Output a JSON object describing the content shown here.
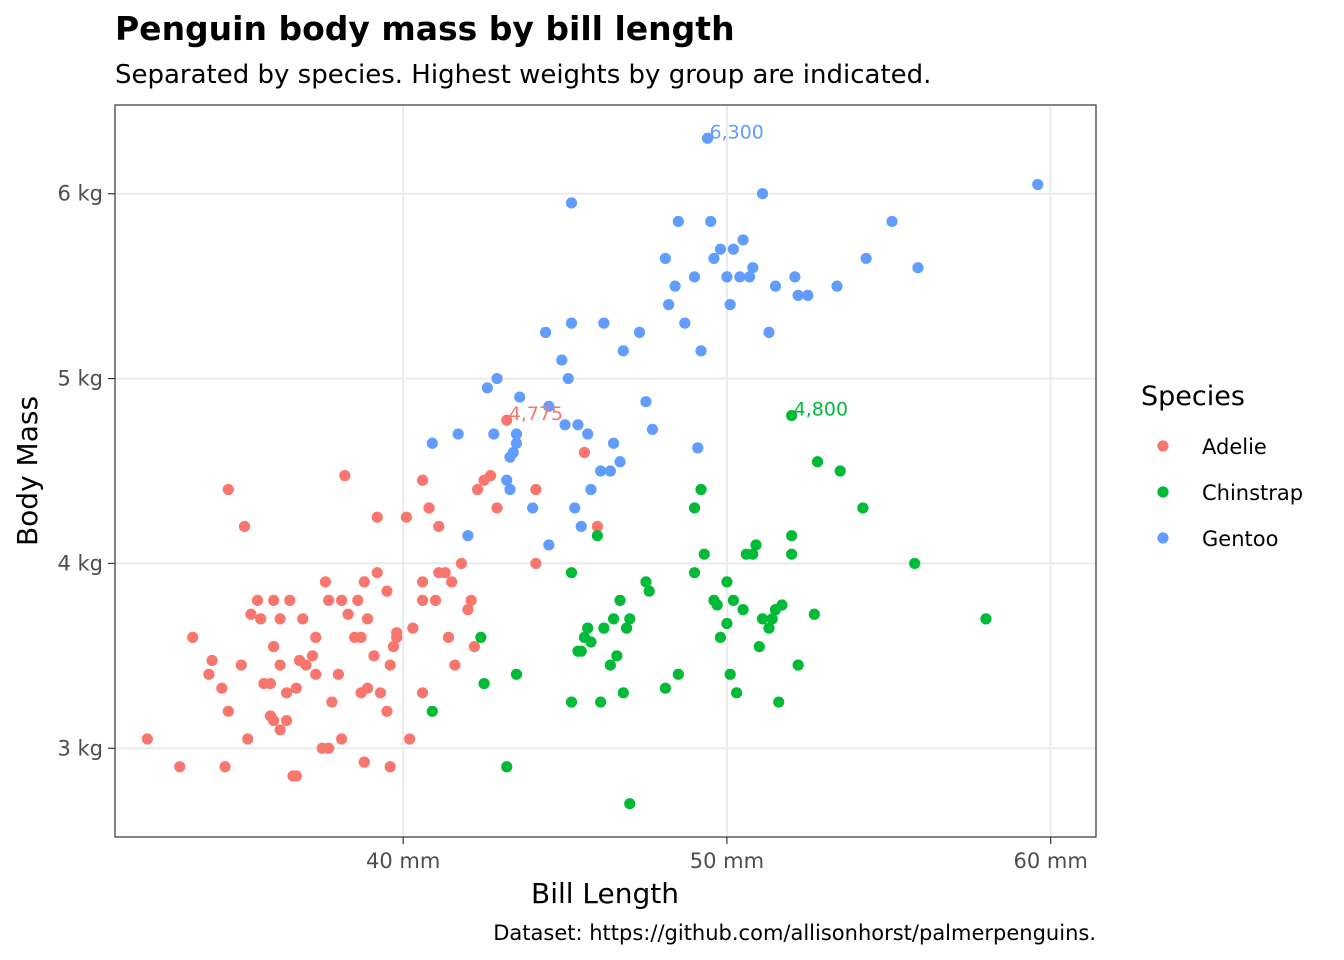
{
  "chart_data": {
    "type": "scatter",
    "title": "Penguin body mass by bill length",
    "subtitle": "Separated by species. Highest weights by group are indicated.",
    "xlabel": "Bill Length",
    "ylabel": "Body Mass",
    "caption": "Dataset: https://github.com/allisonhorst/palmerpenguins.",
    "xlim": [
      31.1,
      61.4
    ],
    "ylim": [
      2.52,
      6.48
    ],
    "x_ticks": [
      {
        "value": 40,
        "label": "40 mm"
      },
      {
        "value": 50,
        "label": "50 mm"
      },
      {
        "value": 60,
        "label": "60 mm"
      }
    ],
    "y_ticks": [
      {
        "value": 3,
        "label": "3 kg"
      },
      {
        "value": 4,
        "label": "4 kg"
      },
      {
        "value": 5,
        "label": "5 kg"
      },
      {
        "value": 6,
        "label": "6 kg"
      }
    ],
    "grid": true,
    "legend": {
      "title": "Species",
      "position": "right"
    },
    "series": [
      {
        "name": "Adelie",
        "color": "#F8766D",
        "points": [
          [
            32.1,
            3.05
          ],
          [
            33.1,
            2.9
          ],
          [
            33.5,
            3.6
          ],
          [
            34.0,
            3.4
          ],
          [
            34.1,
            3.475
          ],
          [
            34.4,
            3.325
          ],
          [
            34.5,
            2.9
          ],
          [
            34.6,
            3.2
          ],
          [
            34.6,
            4.4
          ],
          [
            35.0,
            3.45
          ],
          [
            35.1,
            4.2
          ],
          [
            35.2,
            3.05
          ],
          [
            35.3,
            3.725
          ],
          [
            35.5,
            3.8
          ],
          [
            35.6,
            3.7
          ],
          [
            35.7,
            3.35
          ],
          [
            35.9,
            3.175
          ],
          [
            35.9,
            3.35
          ],
          [
            36.0,
            3.15
          ],
          [
            36.0,
            3.55
          ],
          [
            36.0,
            3.8
          ],
          [
            36.2,
            3.1
          ],
          [
            36.2,
            3.45
          ],
          [
            36.2,
            3.7
          ],
          [
            36.4,
            3.3
          ],
          [
            36.4,
            3.15
          ],
          [
            36.5,
            3.8
          ],
          [
            36.6,
            2.85
          ],
          [
            36.7,
            3.325
          ],
          [
            36.7,
            2.85
          ],
          [
            36.8,
            3.475
          ],
          [
            36.9,
            3.7
          ],
          [
            37.0,
            3.45
          ],
          [
            37.2,
            3.5
          ],
          [
            37.3,
            3.4
          ],
          [
            37.3,
            3.6
          ],
          [
            37.5,
            3.0
          ],
          [
            37.6,
            3.9
          ],
          [
            37.7,
            3.8
          ],
          [
            37.7,
            3.0
          ],
          [
            37.8,
            3.25
          ],
          [
            38.0,
            3.4
          ],
          [
            38.1,
            3.8
          ],
          [
            38.1,
            3.05
          ],
          [
            38.2,
            4.475
          ],
          [
            38.3,
            3.725
          ],
          [
            38.5,
            3.6
          ],
          [
            38.6,
            3.8
          ],
          [
            38.7,
            3.3
          ],
          [
            38.7,
            3.6
          ],
          [
            38.8,
            2.925
          ],
          [
            38.8,
            3.9
          ],
          [
            38.9,
            3.7
          ],
          [
            38.9,
            3.325
          ],
          [
            39.1,
            3.5
          ],
          [
            39.2,
            3.95
          ],
          [
            39.2,
            4.25
          ],
          [
            39.3,
            3.3
          ],
          [
            39.5,
            3.85
          ],
          [
            39.5,
            3.2
          ],
          [
            39.6,
            2.9
          ],
          [
            39.6,
            3.45
          ],
          [
            39.7,
            3.55
          ],
          [
            39.8,
            3.625
          ],
          [
            39.8,
            3.6
          ],
          [
            40.1,
            4.25
          ],
          [
            40.2,
            3.05
          ],
          [
            40.3,
            3.65
          ],
          [
            40.6,
            3.8
          ],
          [
            40.6,
            3.3
          ],
          [
            40.6,
            3.9
          ],
          [
            40.6,
            4.45
          ],
          [
            40.8,
            4.3
          ],
          [
            41.0,
            3.8
          ],
          [
            41.1,
            3.95
          ],
          [
            41.1,
            4.2
          ],
          [
            41.3,
            3.95
          ],
          [
            41.4,
            3.6
          ],
          [
            41.5,
            3.9
          ],
          [
            41.6,
            3.45
          ],
          [
            41.8,
            4.0
          ],
          [
            42.0,
            3.75
          ],
          [
            42.1,
            3.8
          ],
          [
            42.2,
            3.55
          ],
          [
            42.3,
            4.4
          ],
          [
            42.5,
            4.45
          ],
          [
            42.7,
            4.475
          ],
          [
            42.9,
            4.3
          ],
          [
            43.2,
            4.775
          ],
          [
            44.1,
            4.0
          ],
          [
            44.1,
            4.4
          ],
          [
            45.6,
            4.6
          ],
          [
            46.0,
            4.2
          ]
        ],
        "max_label": "4,775",
        "max_point": [
          43.2,
          4.775
        ]
      },
      {
        "name": "Chinstrap",
        "color": "#00BA38",
        "points": [
          [
            40.9,
            3.2
          ],
          [
            42.4,
            3.6
          ],
          [
            42.5,
            3.35
          ],
          [
            43.2,
            2.9
          ],
          [
            43.5,
            3.4
          ],
          [
            45.2,
            3.25
          ],
          [
            45.2,
            3.95
          ],
          [
            45.4,
            3.525
          ],
          [
            45.5,
            3.525
          ],
          [
            45.6,
            3.6
          ],
          [
            45.7,
            3.65
          ],
          [
            45.8,
            3.575
          ],
          [
            46.0,
            4.15
          ],
          [
            46.1,
            3.25
          ],
          [
            46.2,
            3.65
          ],
          [
            46.4,
            3.45
          ],
          [
            46.5,
            3.7
          ],
          [
            46.6,
            3.5
          ],
          [
            46.7,
            3.8
          ],
          [
            46.8,
            3.3
          ],
          [
            46.9,
            3.65
          ],
          [
            47.0,
            3.7
          ],
          [
            47.0,
            2.7
          ],
          [
            47.5,
            3.9
          ],
          [
            47.6,
            3.85
          ],
          [
            48.1,
            3.325
          ],
          [
            48.5,
            3.4
          ],
          [
            49.0,
            3.95
          ],
          [
            49.0,
            4.3
          ],
          [
            49.2,
            4.4
          ],
          [
            49.3,
            4.05
          ],
          [
            49.6,
            3.8
          ],
          [
            49.7,
            3.775
          ],
          [
            49.8,
            3.6
          ],
          [
            50.0,
            3.675
          ],
          [
            50.0,
            3.9
          ],
          [
            50.1,
            3.4
          ],
          [
            50.2,
            3.8
          ],
          [
            50.3,
            3.3
          ],
          [
            50.5,
            3.75
          ],
          [
            50.6,
            4.05
          ],
          [
            50.8,
            4.05
          ],
          [
            50.9,
            4.1
          ],
          [
            51.0,
            3.55
          ],
          [
            51.1,
            3.7
          ],
          [
            51.3,
            3.65
          ],
          [
            51.4,
            3.7
          ],
          [
            51.5,
            3.75
          ],
          [
            51.6,
            3.25
          ],
          [
            51.7,
            3.775
          ],
          [
            52.0,
            4.15
          ],
          [
            52.0,
            4.05
          ],
          [
            52.2,
            3.45
          ],
          [
            52.7,
            3.725
          ],
          [
            52.8,
            4.55
          ],
          [
            53.5,
            4.5
          ],
          [
            54.2,
            4.3
          ],
          [
            55.8,
            4.0
          ],
          [
            58.0,
            3.7
          ],
          [
            52.0,
            4.8
          ]
        ],
        "max_label": "4,800",
        "max_point": [
          52.0,
          4.8
        ]
      },
      {
        "name": "Gentoo",
        "color": "#619CFF",
        "points": [
          [
            40.9,
            4.65
          ],
          [
            41.7,
            4.7
          ],
          [
            42.0,
            4.15
          ],
          [
            42.6,
            4.95
          ],
          [
            42.8,
            4.7
          ],
          [
            42.9,
            5.0
          ],
          [
            43.2,
            4.45
          ],
          [
            43.3,
            4.4
          ],
          [
            43.3,
            4.575
          ],
          [
            43.4,
            4.6
          ],
          [
            43.5,
            4.65
          ],
          [
            43.5,
            4.7
          ],
          [
            43.6,
            4.9
          ],
          [
            44.0,
            4.3
          ],
          [
            44.4,
            5.25
          ],
          [
            44.5,
            4.85
          ],
          [
            44.5,
            4.1
          ],
          [
            44.9,
            5.1
          ],
          [
            45.0,
            4.75
          ],
          [
            45.1,
            5.0
          ],
          [
            45.2,
            5.3
          ],
          [
            45.2,
            5.95
          ],
          [
            45.3,
            4.3
          ],
          [
            45.4,
            4.75
          ],
          [
            45.5,
            4.2
          ],
          [
            45.7,
            4.7
          ],
          [
            45.8,
            4.4
          ],
          [
            46.1,
            4.5
          ],
          [
            46.2,
            5.3
          ],
          [
            46.4,
            4.5
          ],
          [
            46.5,
            4.65
          ],
          [
            46.7,
            4.55
          ],
          [
            46.8,
            5.15
          ],
          [
            47.3,
            5.25
          ],
          [
            47.5,
            4.875
          ],
          [
            47.7,
            4.725
          ],
          [
            48.1,
            5.65
          ],
          [
            48.2,
            5.4
          ],
          [
            48.4,
            5.5
          ],
          [
            48.5,
            5.85
          ],
          [
            48.7,
            5.3
          ],
          [
            49.0,
            5.55
          ],
          [
            49.1,
            4.625
          ],
          [
            49.2,
            5.15
          ],
          [
            49.4,
            6.3
          ],
          [
            49.5,
            5.85
          ],
          [
            49.6,
            5.65
          ],
          [
            49.8,
            5.7
          ],
          [
            50.0,
            5.55
          ],
          [
            50.1,
            5.4
          ],
          [
            50.2,
            5.7
          ],
          [
            50.4,
            5.55
          ],
          [
            50.5,
            5.75
          ],
          [
            50.7,
            5.55
          ],
          [
            50.8,
            5.6
          ],
          [
            51.1,
            6.0
          ],
          [
            51.3,
            5.25
          ],
          [
            51.5,
            5.5
          ],
          [
            52.1,
            5.55
          ],
          [
            52.2,
            5.45
          ],
          [
            52.5,
            5.45
          ],
          [
            53.4,
            5.5
          ],
          [
            54.3,
            5.65
          ],
          [
            55.1,
            5.85
          ],
          [
            55.9,
            5.6
          ],
          [
            59.6,
            6.05
          ]
        ],
        "max_label": "6,300",
        "max_point": [
          49.4,
          6.3
        ]
      }
    ]
  }
}
